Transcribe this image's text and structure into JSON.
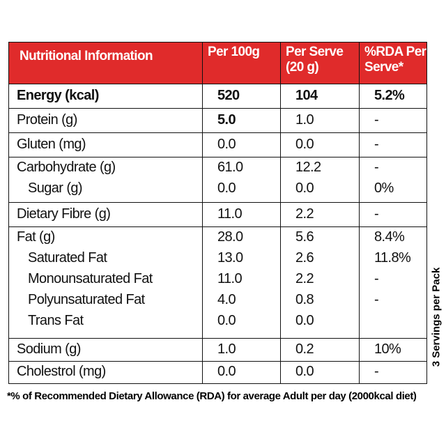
{
  "header": [
    "Nutritional Information",
    [
      "Per 100g"
    ],
    [
      "Per Serve",
      "(20 g)"
    ],
    [
      "%RDA Per",
      "Serve*"
    ]
  ],
  "groups": [
    [
      [
        "Energy (kcal)",
        "520",
        "104",
        "5.2%"
      ]
    ],
    [
      [
        "Protein (g)",
        "5.0",
        "1.0",
        "-"
      ]
    ],
    [
      [
        "Gluten (mg)",
        "0.0",
        "0.0",
        "-"
      ]
    ],
    [
      [
        "Carbohydrate (g)",
        "61.0",
        "12.2",
        "-"
      ],
      [
        "Sugar (g)",
        "0.0",
        "0.0",
        "0%"
      ]
    ],
    [
      [
        "Dietary Fibre (g)",
        "11.0",
        "2.2",
        "-"
      ]
    ],
    [
      [
        "Fat (g)",
        "28.0",
        "5.6",
        "8.4%"
      ],
      [
        "Saturated Fat",
        "13.0",
        "2.6",
        "11.8%"
      ],
      [
        "Monounsaturated Fat",
        "11.0",
        "2.2",
        "-"
      ],
      [
        "Polyunsaturated Fat",
        "4.0",
        "0.8",
        "-"
      ],
      [
        "Trans Fat",
        "0.0",
        "0.0"
      ]
    ],
    [
      [
        "Sodium (g)",
        "1.0",
        "0.2",
        "10%"
      ]
    ],
    [
      [
        "Cholestrol (mg)",
        "0.0",
        "0.0",
        "-"
      ]
    ]
  ],
  "side_note": "3 Servings per Pack",
  "footnote": "*% of Recommended Dietary Allowance (RDA) for average Adult per day (2000kcal diet)"
}
